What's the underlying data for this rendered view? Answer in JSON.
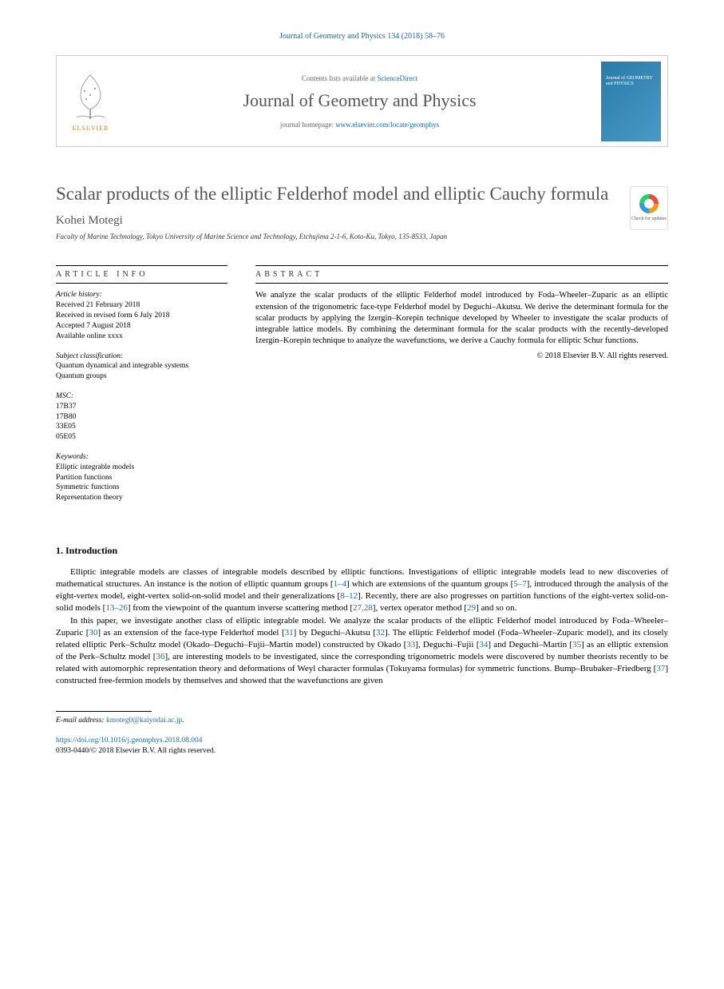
{
  "top_citation": "Journal of Geometry and Physics 134 (2018) 58–76",
  "header": {
    "contents_prefix": "Contents lists available at ",
    "contents_link": "ScienceDirect",
    "journal_name": "Journal of Geometry and Physics",
    "homepage_prefix": "journal homepage: ",
    "homepage_url": "www.elsevier.com/locate/geomphys",
    "elsevier_label": "ELSEVIER",
    "cover_text": "Journal of GEOMETRY and PHYSICS"
  },
  "title": "Scalar products of the elliptic Felderhof model and elliptic Cauchy formula",
  "check_updates_label": "Check for updates",
  "author": "Kohei Motegi",
  "affiliation": "Faculty of Marine Technology, Tokyo University of Marine Science and Technology, Etchujima 2-1-6, Koto-Ku, Tokyo, 135-8533, Japan",
  "article_info": {
    "heading": "article info",
    "history_label": "Article history:",
    "history": [
      "Received 21 February 2018",
      "Received in revised form 6 July 2018",
      "Accepted 7 August 2018",
      "Available online xxxx"
    ],
    "subject_label": "Subject classification:",
    "subjects": [
      "Quantum dynamical and integrable systems",
      "Quantum groups"
    ],
    "msc_label": "MSC:",
    "msc": [
      "17B37",
      "17B80",
      "33E05",
      "05E05"
    ],
    "keywords_label": "Keywords:",
    "keywords": [
      "Elliptic integrable models",
      "Partition functions",
      "Symmetric functions",
      "Representation theory"
    ]
  },
  "abstract": {
    "heading": "abstract",
    "text": "We analyze the scalar products of the elliptic Felderhof model introduced by Foda–Wheeler–Zuparic as an elliptic extension of the trigonometric face-type Felderhof model by Deguchi–Akutsu. We derive the determinant formula for the scalar products by applying the Izergin–Korepin technique developed by Wheeler to investigate the scalar products of integrable lattice models. By combining the determinant formula for the scalar products with the recently-developed Izergin–Korepin technique to analyze the wavefunctions, we derive a Cauchy formula for elliptic Schur functions.",
    "copyright": "© 2018 Elsevier B.V. All rights reserved."
  },
  "body": {
    "heading": "1.  Introduction",
    "p1_parts": [
      "Elliptic integrable models are classes of integrable models described by elliptic functions. Investigations of elliptic integrable models lead to new discoveries of mathematical structures. An instance is the notion of elliptic quantum groups [",
      "1–4",
      "] which are extensions of the quantum groups [",
      "5–7",
      "], introduced through the analysis of the eight-vertex model, eight-vertex solid-on-solid model and their generalizations [",
      "8–12",
      "]. Recently, there are also progresses on partition functions of the eight-vertex solid-on-solid models [",
      "13–26",
      "] from the viewpoint of the quantum inverse scattering method [",
      "27,28",
      "], vertex operator method [",
      "29",
      "] and so on."
    ],
    "p2_parts": [
      "In this paper, we investigate another class of elliptic integrable model. We analyze the scalar products of the elliptic Felderhof model introduced by Foda–Wheeler–Zuparic [",
      "30",
      "] as an extension of the face-type Felderhof model [",
      "31",
      "] by Deguchi–Akutsu [",
      "32",
      "]. The elliptic Felderhof model (Foda–Wheeler–Zuparic model), and its closely related elliptic Perk–Schultz model (Okado–Deguchi–Fujii–Martin model) constructed by Okado [",
      "33",
      "], Deguchi–Fujii [",
      "34",
      "] and Deguchi–Martin [",
      "35",
      "] as an elliptic extension of the Perk–Schultz model [",
      "36",
      "], are interesting models to be investigated, since the corresponding trigonometric models were discovered by number theorists recently to be related with automorphic representation theory and deformations of Weyl character formulas (Tokuyama formulas) for symmetric functions. Bump–Brubaker–Friedberg [",
      "37",
      "] constructed free-fermion models by themselves and showed that the wavefunctions are given"
    ]
  },
  "footer": {
    "email_label": "E-mail address:",
    "email": "kmoteg0@kaiyodai.ac.jp",
    "doi": "https://doi.org/10.1016/j.geomphys.2018.08.004",
    "issn_line": "0393-0440/© 2018 Elsevier B.V. All rights reserved."
  },
  "colors": {
    "link": "#1a6ba8",
    "elsevier_orange": "#e67817",
    "text_gray": "#555555"
  }
}
